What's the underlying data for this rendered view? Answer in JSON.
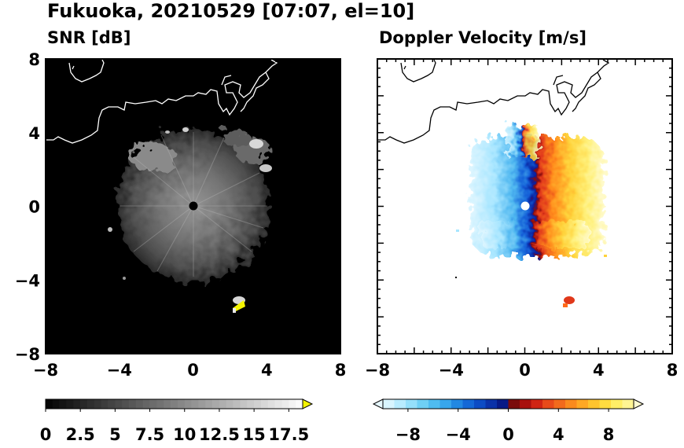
{
  "figure": {
    "title": "Fukuoka, 20210529 [07:07, el=10]"
  },
  "chart_data": [
    {
      "type": "heatmap",
      "title": "SNR [dB]",
      "xlim": [
        -8,
        8
      ],
      "ylim": [
        -8,
        8
      ],
      "xticks": [
        -8,
        -4,
        0,
        4,
        8
      ],
      "yticks": [
        -8,
        -4,
        0,
        4,
        8
      ],
      "xtick_labels": [
        "−8",
        "−4",
        "0",
        "4",
        "8"
      ],
      "ytick_labels": [
        "−8",
        "−4",
        "0",
        "4",
        "8"
      ],
      "background": "#000000",
      "echo_radius": 4.0,
      "colorbar": {
        "min": 0,
        "max": 18.5,
        "extend": "max",
        "ticks": [
          0,
          2.5,
          5,
          7.5,
          10,
          12.5,
          15,
          17.5
        ],
        "tick_labels": [
          "0",
          "2.5",
          "5",
          "7.5",
          "10",
          "12.5",
          "15",
          "17.5"
        ]
      },
      "coast_color": "#ffffff"
    },
    {
      "type": "heatmap",
      "title": "Doppler Velocity [m/s]",
      "xlim": [
        -8,
        8
      ],
      "ylim": [
        -8,
        8
      ],
      "xticks": [
        -8,
        -4,
        0,
        4,
        8
      ],
      "yticks": [
        -8,
        -4,
        0,
        4,
        8
      ],
      "xtick_labels": [
        "−8",
        "−4",
        "0",
        "4",
        "8"
      ],
      "ytick_labels": [
        "−8",
        "−4",
        "0",
        "4",
        "8"
      ],
      "background": "#ffffff",
      "velocity_range": [
        -10,
        10
      ],
      "colorbar": {
        "min": -10,
        "max": 10,
        "extend": "both",
        "ticks": [
          -8,
          -4,
          0,
          4,
          8
        ],
        "tick_labels": [
          "−8",
          "−4",
          "0",
          "4",
          "8"
        ]
      },
      "coast_color": "#000000"
    }
  ]
}
